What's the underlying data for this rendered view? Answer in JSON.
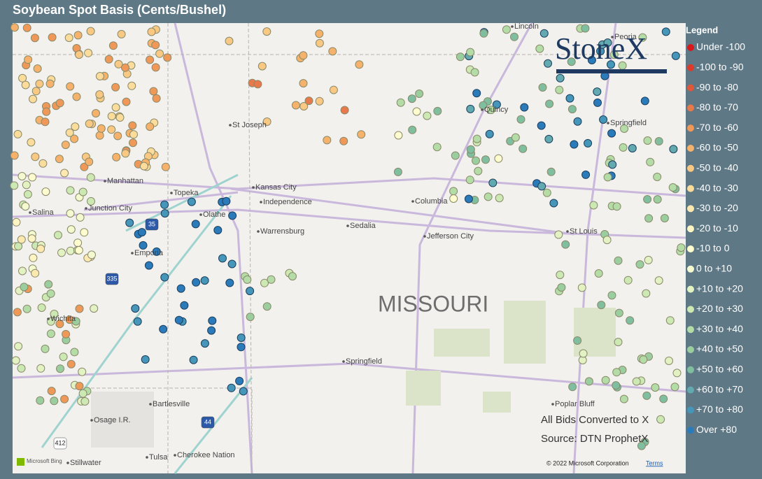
{
  "header": {
    "title": "Soybean Spot Basis (Cents/Bushel)"
  },
  "legend": {
    "title": "Legend",
    "items": [
      {
        "label": "Under -100",
        "color": "#d7191c"
      },
      {
        "label": "-100 to -90",
        "color": "#dc3a2a"
      },
      {
        "label": "-90 to -80",
        "color": "#e0573a"
      },
      {
        "label": "-80 to -70",
        "color": "#e8794a"
      },
      {
        "label": "-70 to -60",
        "color": "#f09858"
      },
      {
        "label": "-60 to -50",
        "color": "#f6b26b"
      },
      {
        "label": "-50 to -40",
        "color": "#f9c983"
      },
      {
        "label": "-40 to -30",
        "color": "#fcdc9a"
      },
      {
        "label": "-30 to -20",
        "color": "#fde9b0"
      },
      {
        "label": "-20 to -10",
        "color": "#fef4c4"
      },
      {
        "label": "-10 to 0",
        "color": "#fffccf"
      },
      {
        "label": "0 to +10",
        "color": "#f4f9cf"
      },
      {
        "label": "+10 to +20",
        "color": "#e2f2c2"
      },
      {
        "label": "+20 to +30",
        "color": "#cce8b3"
      },
      {
        "label": "+30 to +40",
        "color": "#b4dca6"
      },
      {
        "label": "+40 to +50",
        "color": "#9bce9f"
      },
      {
        "label": "+50 to +60",
        "color": "#7fbfa0"
      },
      {
        "label": "+60 to +70",
        "color": "#62aab0"
      },
      {
        "label": "+70 to +80",
        "color": "#4596b8"
      },
      {
        "label": "Over +80",
        "color": "#2b7bba"
      }
    ]
  },
  "map": {
    "places": [
      "St Joseph",
      "Kansas City",
      "Independence",
      "Manhattan",
      "Topeka",
      "Junction City",
      "Salina",
      "Olathe",
      "Emporia",
      "Warrensburg",
      "Sedalia",
      "Columbia",
      "Jefferson City",
      "St Louis",
      "Quincy",
      "Springfield",
      "Peoria",
      "Wichita",
      "Bartlesville",
      "Osage I.R.",
      "Tulsa",
      "Cherokee Nation",
      "Stillwater",
      "Springfield",
      "Poplar Bluff",
      "Lincoln"
    ],
    "state": "MISSOURI",
    "highways": [
      "35",
      "335",
      "44",
      "412"
    ],
    "note": "All Bids Converted to X",
    "source": "Source: DTN ProphetX",
    "logo": "StoneX",
    "bing": "Microsoft Bing",
    "copyright": "© 2022 Microsoft Corporation",
    "terms": "Terms"
  }
}
